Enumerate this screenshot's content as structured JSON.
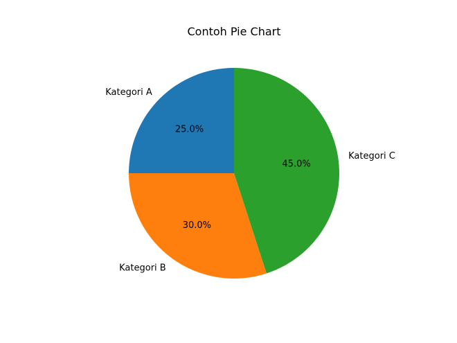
{
  "chart_data": {
    "type": "pie",
    "title": "Contoh Pie Chart",
    "categories": [
      "Kategori A",
      "Kategori B",
      "Kategori C"
    ],
    "values": [
      25,
      30,
      45
    ],
    "percent_labels": [
      "25.0%",
      "30.0%",
      "45.0%"
    ],
    "colors": [
      "#1f77b4",
      "#ff7f0e",
      "#2ca02c"
    ],
    "start_angle": 90,
    "direction": "counterclockwise"
  }
}
